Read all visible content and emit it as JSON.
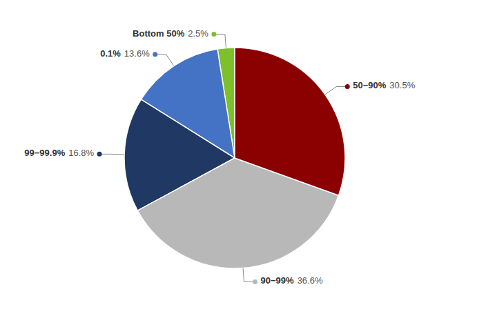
{
  "chart_data": {
    "type": "pie",
    "categories": [
      "Bottom 50%",
      "0.1%",
      "99−99.9%",
      "90−99%",
      "50−90%"
    ],
    "values": [
      2.5,
      13.6,
      16.8,
      36.6,
      30.5
    ],
    "value_labels": [
      "2.5%",
      "13.6%",
      "16.8%",
      "36.6%",
      "30.5%"
    ],
    "colors": [
      "#7DC02A",
      "#4472C4",
      "#1F3864",
      "#B8B8B8",
      "#8B0000"
    ]
  }
}
